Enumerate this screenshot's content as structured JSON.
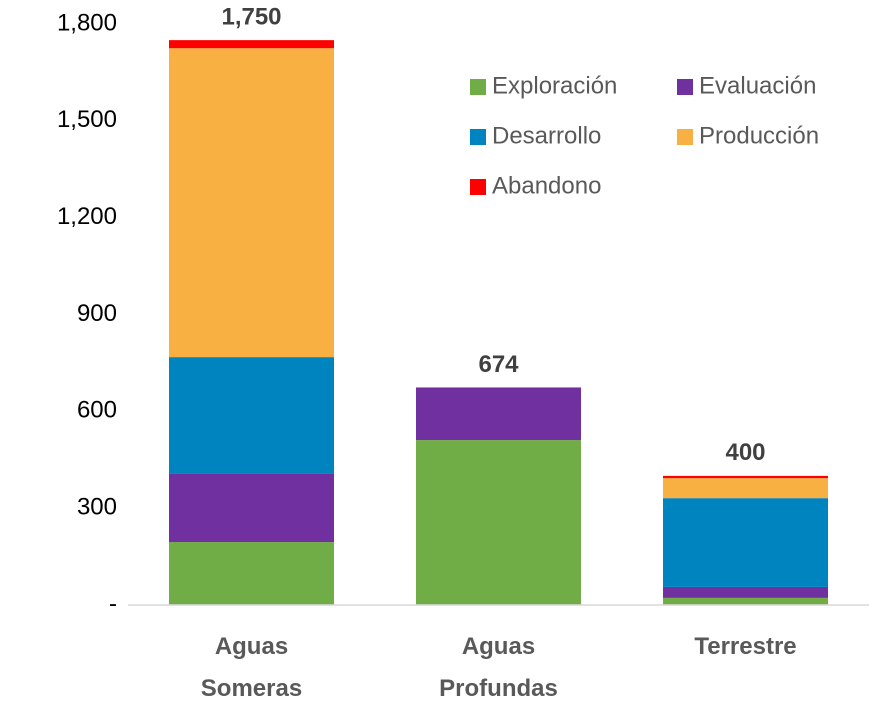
{
  "chart_data": {
    "type": "stacked_bar",
    "categories": [
      "Aguas Someras",
      "Aguas Profundas",
      "Terrestre"
    ],
    "series": [
      {
        "name": "Exploración",
        "color": "#70ad47",
        "values": [
          195,
          511,
          22
        ]
      },
      {
        "name": "Evaluación",
        "color": "#7030a0",
        "values": [
          211,
          163,
          34
        ]
      },
      {
        "name": "Desarrollo",
        "color": "#0084c0",
        "values": [
          362,
          0,
          275
        ]
      },
      {
        "name": "Producción",
        "color": "#f9b042",
        "values": [
          957,
          0,
          62
        ]
      },
      {
        "name": "Abandono",
        "color": "#ff0000",
        "values": [
          25,
          0,
          7
        ]
      }
    ],
    "totals": [
      1750,
      674,
      400
    ],
    "totals_labels": [
      "1,750",
      "674",
      "400"
    ],
    "ylim": [
      0,
      1800
    ],
    "yticks": [
      {
        "value": 0,
        "label": "-"
      },
      {
        "value": 300,
        "label": "300"
      },
      {
        "value": 600,
        "label": "600"
      },
      {
        "value": 900,
        "label": "900"
      },
      {
        "value": 1200,
        "label": "1,200"
      },
      {
        "value": 1500,
        "label": "1,500"
      },
      {
        "value": 1800,
        "label": "1,800"
      }
    ],
    "legend": "top-right",
    "grid": false
  }
}
